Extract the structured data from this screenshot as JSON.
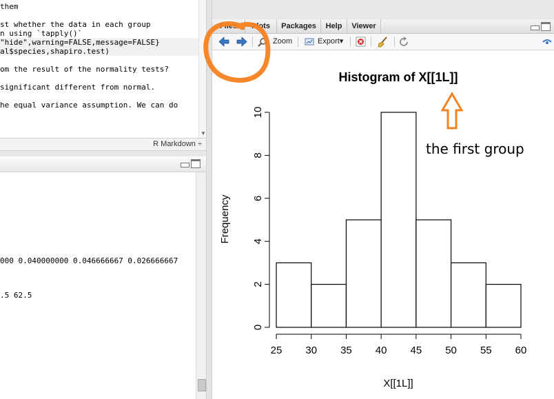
{
  "editor": {
    "lines": [
      {
        "text": "them",
        "hl": false
      },
      {
        "text": "",
        "hl": false
      },
      {
        "text": "st whether the data in each group",
        "hl": false
      },
      {
        "text": "n using `tapply()`",
        "hl": false
      },
      {
        "text": "\"hide\",warning=FALSE,message=FALSE}",
        "hl": true
      },
      {
        "text": "al$species,shapiro.test)",
        "hl": true
      },
      {
        "text": "",
        "hl": false
      },
      {
        "text": "om the result of the normality tests?",
        "hl": false
      },
      {
        "text": "",
        "hl": false
      },
      {
        "text": "significant different from normal.",
        "hl": false
      },
      {
        "text": "",
        "hl": false
      },
      {
        "text": "he equal variance assumption. We can do",
        "hl": false
      }
    ],
    "mode_label": "R Markdown ÷"
  },
  "console": {
    "lines": [
      {
        "text": "000 0.040000000 0.046666667 0.026666667",
        "top": 122
      },
      {
        "text": ".5 62.5",
        "top": 172
      }
    ]
  },
  "tabs": [
    {
      "label": "Files"
    },
    {
      "label": "Plots"
    },
    {
      "label": "Packages"
    },
    {
      "label": "Help"
    },
    {
      "label": "Viewer"
    }
  ],
  "toolbar": {
    "zoom_label": "Zoom",
    "export_label": "Export▾"
  },
  "chart_data": {
    "type": "bar",
    "title": "Histogram of X[[1L]]",
    "xlabel": "X[[1L]]",
    "ylabel": "Frequency",
    "bins": [
      [
        25,
        30
      ],
      [
        30,
        35
      ],
      [
        35,
        40
      ],
      [
        40,
        45
      ],
      [
        45,
        50
      ],
      [
        50,
        55
      ],
      [
        55,
        60
      ]
    ],
    "values": [
      3,
      2,
      5,
      10,
      5,
      3,
      2
    ],
    "xlim": [
      25,
      60
    ],
    "ylim": [
      0,
      10
    ],
    "xticks": [
      25,
      30,
      35,
      40,
      45,
      50,
      55,
      60
    ],
    "yticks": [
      0,
      2,
      4,
      6,
      8,
      10
    ]
  },
  "annotation": {
    "text": "the first group",
    "color": "#f58220"
  },
  "colors": {
    "accent": "#f58220",
    "arrow_blue": "#3a78c4"
  }
}
